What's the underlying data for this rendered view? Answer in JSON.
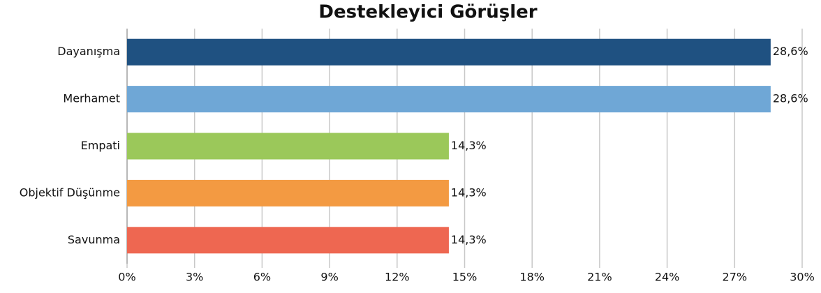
{
  "chart_data": {
    "type": "bar",
    "orientation": "horizontal",
    "title": "Destekleyici Görüşler",
    "categories": [
      "Dayanışma",
      "Merhamet",
      "Empati",
      "Objektif Düşünme",
      "Savunma"
    ],
    "values": [
      28.6,
      28.6,
      14.3,
      14.3,
      14.3
    ],
    "value_labels": [
      "28,6%",
      "28,6%",
      "14,3%",
      "14,3%",
      "14,3%"
    ],
    "colors": [
      "#1f5181",
      "#6fa7d6",
      "#9bc85a",
      "#f39a42",
      "#ee6751"
    ],
    "xlim": [
      0,
      30
    ],
    "xticks": [
      {
        "value": 0,
        "label": "0%"
      },
      {
        "value": 3,
        "label": "3%"
      },
      {
        "value": 6,
        "label": "6%"
      },
      {
        "value": 9,
        "label": "9%"
      },
      {
        "value": 12,
        "label": "12%"
      },
      {
        "value": 15,
        "label": "15%"
      },
      {
        "value": 18,
        "label": "18%"
      },
      {
        "value": 21,
        "label": "21%"
      },
      {
        "value": 24,
        "label": "24%"
      },
      {
        "value": 27,
        "label": "27%"
      },
      {
        "value": 30,
        "label": "30%"
      }
    ],
    "grid": true
  }
}
